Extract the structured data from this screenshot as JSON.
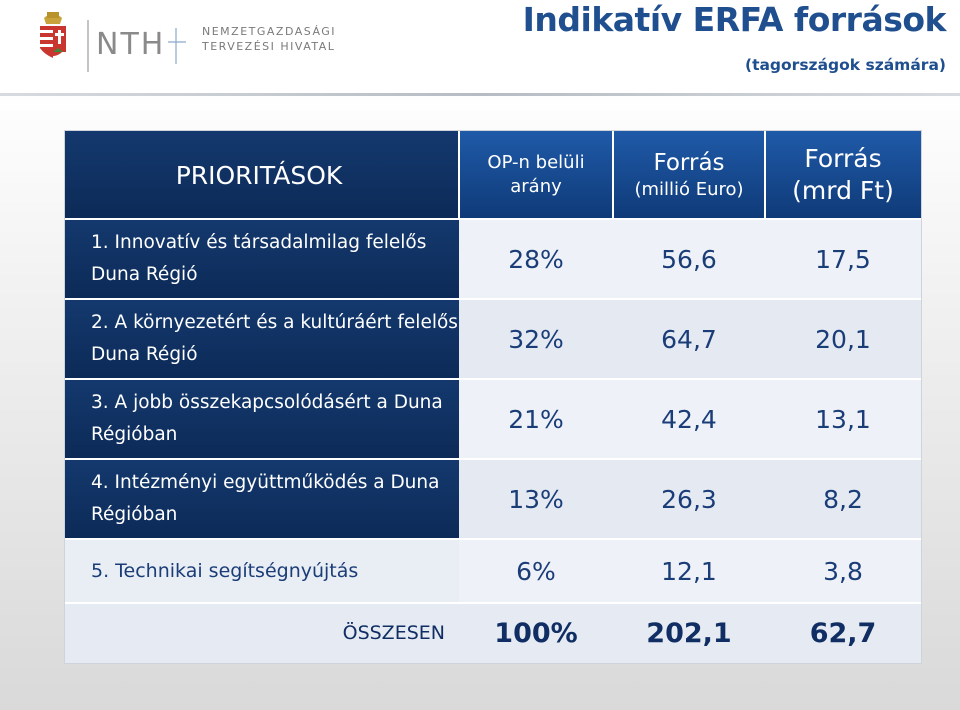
{
  "header": {
    "org_line1": "NEMZETGAZDASÁGI",
    "org_line2": "TERVEZÉSI HIVATAL",
    "logo_text": "NTH",
    "title": "Indikatív ERFA források",
    "subtitle": "(tagországok számára)"
  },
  "table": {
    "col_headers": {
      "priorities": "PRIORITÁSOK",
      "share_line1": "OP-n belüli",
      "share_line2": "arány",
      "eur_line1": "Forrás",
      "eur_line2": "(millió Euro)",
      "huf_line1": "Forrás",
      "huf_line2": "(mrd Ft)"
    },
    "rows": [
      {
        "label": "1.  Innovatív és társadalmilag felelős Duna Régió",
        "share": "28%",
        "eur": "56,6",
        "huf": "17,5"
      },
      {
        "label": "2. A környezetért és a kultúráért felelős Duna Régió",
        "share": "32%",
        "eur": "64,7",
        "huf": "20,1"
      },
      {
        "label": "3. A jobb összekapcsolódásért a Duna Régióban",
        "share": "21%",
        "eur": "42,4",
        "huf": "13,1"
      },
      {
        "label": "4. Intézményi együttműködés a Duna Régióban",
        "share": "13%",
        "eur": "26,3",
        "huf": "8,2"
      },
      {
        "label": "5. Technikai segítségnyújtás",
        "share": "6%",
        "eur": "12,1",
        "huf": "3,8"
      }
    ],
    "total": {
      "label": "ÖSSZESEN",
      "share": "100%",
      "eur": "202,1",
      "huf": "62,7"
    }
  },
  "colors": {
    "title": "#1f4f8f",
    "header_blue": "#1f5aa8",
    "dark_navy": "#0d2e60",
    "number_text": "#1a3d78"
  }
}
